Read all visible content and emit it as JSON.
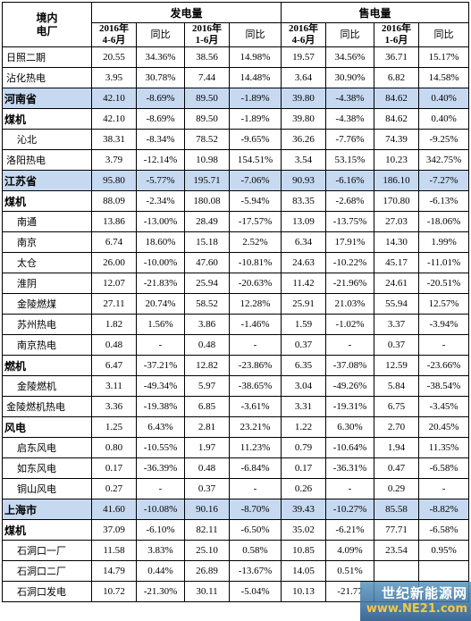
{
  "header": {
    "corner": "境内\n电厂",
    "group1": "发电量",
    "group2": "售电量",
    "sub": [
      "2016年\n4-6月",
      "同比",
      "2016年\n1-6月",
      "同比",
      "2016年\n4-6月",
      "同比",
      "2016年\n1-6月",
      "同比"
    ]
  },
  "rows": [
    {
      "name": "日照二期",
      "type": "plant",
      "cells": [
        "20.55",
        "34.36%",
        "38.56",
        "14.98%",
        "19.57",
        "34.56%",
        "36.71",
        "15.17%"
      ]
    },
    {
      "name": "沾化热电",
      "type": "plant",
      "cells": [
        "3.95",
        "30.78%",
        "7.44",
        "14.48%",
        "3.64",
        "30.90%",
        "6.82",
        "14.58%"
      ]
    },
    {
      "name": "河南省",
      "type": "province",
      "cells": [
        "42.10",
        "-8.69%",
        "89.50",
        "-1.89%",
        "39.80",
        "-4.38%",
        "84.62",
        "0.40%"
      ]
    },
    {
      "name": "煤机",
      "type": "section",
      "cells": [
        "42.10",
        "-8.69%",
        "89.50",
        "-1.89%",
        "39.80",
        "-4.38%",
        "84.62",
        "0.40%"
      ]
    },
    {
      "name": "沁北",
      "type": "plant2",
      "cells": [
        "38.31",
        "-8.34%",
        "78.52",
        "-9.65%",
        "36.26",
        "-7.76%",
        "74.39",
        "-9.25%"
      ]
    },
    {
      "name": "洛阳热电",
      "type": "plant",
      "cells": [
        "3.79",
        "-12.14%",
        "10.98",
        "154.51%",
        "3.54",
        "53.15%",
        "10.23",
        "342.75%"
      ]
    },
    {
      "name": "江苏省",
      "type": "province",
      "cells": [
        "95.80",
        "-5.77%",
        "195.71",
        "-7.06%",
        "90.93",
        "-6.16%",
        "186.10",
        "-7.27%"
      ]
    },
    {
      "name": "煤机",
      "type": "section",
      "cells": [
        "88.09",
        "-2.34%",
        "180.08",
        "-5.94%",
        "83.35",
        "-2.68%",
        "170.80",
        "-6.13%"
      ]
    },
    {
      "name": "南通",
      "type": "plant2",
      "cells": [
        "13.86",
        "-13.00%",
        "28.49",
        "-17.57%",
        "13.09",
        "-13.75%",
        "27.03",
        "-18.06%"
      ]
    },
    {
      "name": "南京",
      "type": "plant2",
      "cells": [
        "6.74",
        "18.60%",
        "15.18",
        "2.52%",
        "6.34",
        "17.91%",
        "14.30",
        "1.99%"
      ]
    },
    {
      "name": "太仓",
      "type": "plant2",
      "cells": [
        "26.00",
        "-10.00%",
        "47.60",
        "-10.81%",
        "24.63",
        "-10.22%",
        "45.17",
        "-11.01%"
      ]
    },
    {
      "name": "淮阴",
      "type": "plant2",
      "cells": [
        "12.07",
        "-21.83%",
        "25.94",
        "-20.63%",
        "11.42",
        "-21.96%",
        "24.61",
        "-20.51%"
      ]
    },
    {
      "name": "金陵燃煤",
      "type": "plant2",
      "cells": [
        "27.11",
        "20.74%",
        "58.52",
        "12.28%",
        "25.91",
        "21.03%",
        "55.94",
        "12.57%"
      ]
    },
    {
      "name": "苏州热电",
      "type": "plant2",
      "cells": [
        "1.82",
        "1.56%",
        "3.86",
        "-1.46%",
        "1.59",
        "-1.02%",
        "3.37",
        "-3.94%"
      ]
    },
    {
      "name": "南京热电",
      "type": "plant2",
      "cells": [
        "0.48",
        "-",
        "0.48",
        "-",
        "0.37",
        "-",
        "0.37",
        "-"
      ]
    },
    {
      "name": "燃机",
      "type": "section",
      "cells": [
        "6.47",
        "-37.21%",
        "12.82",
        "-23.86%",
        "6.35",
        "-37.08%",
        "12.59",
        "-23.66%"
      ]
    },
    {
      "name": "金陵燃机",
      "type": "plant2",
      "cells": [
        "3.11",
        "-49.34%",
        "5.97",
        "-38.65%",
        "3.04",
        "-49.26%",
        "5.84",
        "-38.54%"
      ]
    },
    {
      "name": "金陵燃机热电",
      "type": "plant",
      "cells": [
        "3.36",
        "-19.38%",
        "6.85",
        "-3.61%",
        "3.31",
        "-19.31%",
        "6.75",
        "-3.45%"
      ]
    },
    {
      "name": "风电",
      "type": "section",
      "cells": [
        "1.25",
        "6.43%",
        "2.81",
        "23.21%",
        "1.22",
        "6.30%",
        "2.70",
        "20.45%"
      ]
    },
    {
      "name": "启东风电",
      "type": "plant2",
      "cells": [
        "0.80",
        "-10.55%",
        "1.97",
        "11.23%",
        "0.79",
        "-10.64%",
        "1.94",
        "11.35%"
      ]
    },
    {
      "name": "如东风电",
      "type": "plant2",
      "cells": [
        "0.17",
        "-36.39%",
        "0.48",
        "-6.84%",
        "0.17",
        "-36.31%",
        "0.47",
        "-6.58%"
      ]
    },
    {
      "name": "铜山风电",
      "type": "plant2",
      "cells": [
        "0.27",
        "-",
        "0.37",
        "-",
        "0.26",
        "-",
        "0.29",
        "-"
      ]
    },
    {
      "name": "上海市",
      "type": "province",
      "cells": [
        "41.60",
        "-10.08%",
        "90.16",
        "-8.70%",
        "39.43",
        "-10.27%",
        "85.58",
        "-8.82%"
      ]
    },
    {
      "name": "煤机",
      "type": "section",
      "cells": [
        "37.09",
        "-6.10%",
        "82.11",
        "-6.50%",
        "35.02",
        "-6.21%",
        "77.71",
        "-6.58%"
      ]
    },
    {
      "name": "石洞口一厂",
      "type": "plant2",
      "cells": [
        "11.58",
        "3.83%",
        "25.10",
        "0.58%",
        "10.85",
        "4.09%",
        "23.54",
        "0.95%"
      ]
    },
    {
      "name": "石洞口二厂",
      "type": "plant2",
      "cells": [
        "14.79",
        "0.44%",
        "26.89",
        "-13.67%",
        "14.05",
        "0.51%",
        "",
        ""
      ]
    },
    {
      "name": "石洞口发电",
      "type": "plant2",
      "cells": [
        "10.72",
        "-21.30%",
        "30.11",
        "-5.04%",
        "10.13",
        "-21.77",
        "",
        ""
      ]
    }
  ],
  "watermark": {
    "main": "世纪新能源网",
    "sub": "www.NE21.com"
  }
}
